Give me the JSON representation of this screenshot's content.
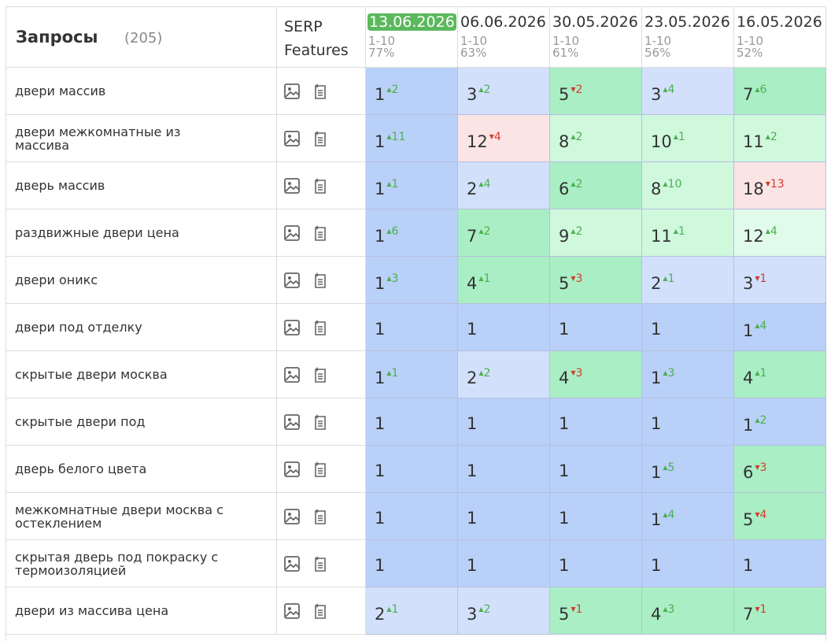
{
  "header": {
    "title": "Запросы",
    "count": "(205)",
    "serp": "SERP Features",
    "dates": [
      {
        "date": "13.06.2026",
        "range": "1-10",
        "share": "77%",
        "active": true
      },
      {
        "date": "06.06.2026",
        "range": "1-10",
        "share": "63%",
        "active": false
      },
      {
        "date": "30.05.2026",
        "range": "1-10",
        "share": "61%",
        "active": false
      },
      {
        "date": "23.05.2026",
        "range": "1-10",
        "share": "56%",
        "active": false
      },
      {
        "date": "16.05.2026",
        "range": "1-10",
        "share": "52%",
        "active": false
      }
    ]
  },
  "table": {
    "rows": [
      {
        "query": "двери массив",
        "cells": [
          {
            "pos": 1,
            "delta": 2,
            "dir": "up"
          },
          {
            "pos": 3,
            "delta": 2,
            "dir": "up"
          },
          {
            "pos": 5,
            "delta": 2,
            "dir": "down"
          },
          {
            "pos": 3,
            "delta": 4,
            "dir": "up"
          },
          {
            "pos": 7,
            "delta": 6,
            "dir": "up"
          }
        ]
      },
      {
        "query": "двери межкомнатные из массива",
        "cells": [
          {
            "pos": 1,
            "delta": 11,
            "dir": "up"
          },
          {
            "pos": 12,
            "delta": 4,
            "dir": "down"
          },
          {
            "pos": 8,
            "delta": 2,
            "dir": "up"
          },
          {
            "pos": 10,
            "delta": 1,
            "dir": "up"
          },
          {
            "pos": 11,
            "delta": 2,
            "dir": "up"
          }
        ]
      },
      {
        "query": "дверь массив",
        "cells": [
          {
            "pos": 1,
            "delta": 1,
            "dir": "up"
          },
          {
            "pos": 2,
            "delta": 4,
            "dir": "up"
          },
          {
            "pos": 6,
            "delta": 2,
            "dir": "up"
          },
          {
            "pos": 8,
            "delta": 10,
            "dir": "up"
          },
          {
            "pos": 18,
            "delta": 13,
            "dir": "down"
          }
        ]
      },
      {
        "query": "раздвижные двери цена",
        "cells": [
          {
            "pos": 1,
            "delta": 6,
            "dir": "up"
          },
          {
            "pos": 7,
            "delta": 2,
            "dir": "up"
          },
          {
            "pos": 9,
            "delta": 2,
            "dir": "up"
          },
          {
            "pos": 11,
            "delta": 1,
            "dir": "up"
          },
          {
            "pos": 12,
            "delta": 4,
            "dir": "up"
          }
        ]
      },
      {
        "query": "двери оникс",
        "cells": [
          {
            "pos": 1,
            "delta": 3,
            "dir": "up"
          },
          {
            "pos": 4,
            "delta": 1,
            "dir": "up"
          },
          {
            "pos": 5,
            "delta": 3,
            "dir": "down"
          },
          {
            "pos": 2,
            "delta": 1,
            "dir": "up"
          },
          {
            "pos": 3,
            "delta": 1,
            "dir": "down"
          }
        ]
      },
      {
        "query": "двери под отделку",
        "cells": [
          {
            "pos": 1
          },
          {
            "pos": 1
          },
          {
            "pos": 1
          },
          {
            "pos": 1
          },
          {
            "pos": 1,
            "delta": 4,
            "dir": "up"
          }
        ]
      },
      {
        "query": "скрытые двери москва",
        "cells": [
          {
            "pos": 1,
            "delta": 1,
            "dir": "up"
          },
          {
            "pos": 2,
            "delta": 2,
            "dir": "up"
          },
          {
            "pos": 4,
            "delta": 3,
            "dir": "down"
          },
          {
            "pos": 1,
            "delta": 3,
            "dir": "up"
          },
          {
            "pos": 4,
            "delta": 1,
            "dir": "up"
          }
        ]
      },
      {
        "query": "скрытые двери под",
        "cells": [
          {
            "pos": 1
          },
          {
            "pos": 1
          },
          {
            "pos": 1
          },
          {
            "pos": 1
          },
          {
            "pos": 1,
            "delta": 2,
            "dir": "up"
          }
        ]
      },
      {
        "query": "дверь белого цвета",
        "cells": [
          {
            "pos": 1
          },
          {
            "pos": 1
          },
          {
            "pos": 1
          },
          {
            "pos": 1,
            "delta": 5,
            "dir": "up"
          },
          {
            "pos": 6,
            "delta": 3,
            "dir": "down"
          }
        ]
      },
      {
        "query": "межкомнатные двери москва с остеклением",
        "cells": [
          {
            "pos": 1
          },
          {
            "pos": 1
          },
          {
            "pos": 1
          },
          {
            "pos": 1,
            "delta": 4,
            "dir": "up"
          },
          {
            "pos": 5,
            "delta": 4,
            "dir": "down"
          }
        ]
      },
      {
        "query": "скрытая дверь под покраску с термоизоляцией",
        "cells": [
          {
            "pos": 1
          },
          {
            "pos": 1
          },
          {
            "pos": 1
          },
          {
            "pos": 1
          },
          {
            "pos": 1
          }
        ]
      },
      {
        "query": "двери из массива цена",
        "cells": [
          {
            "pos": 2,
            "delta": 1,
            "dir": "up"
          },
          {
            "pos": 3,
            "delta": 2,
            "dir": "up"
          },
          {
            "pos": 5,
            "delta": 1,
            "dir": "down"
          },
          {
            "pos": 4,
            "delta": 3,
            "dir": "up"
          },
          {
            "pos": 7,
            "delta": 1,
            "dir": "down"
          }
        ]
      }
    ]
  }
}
